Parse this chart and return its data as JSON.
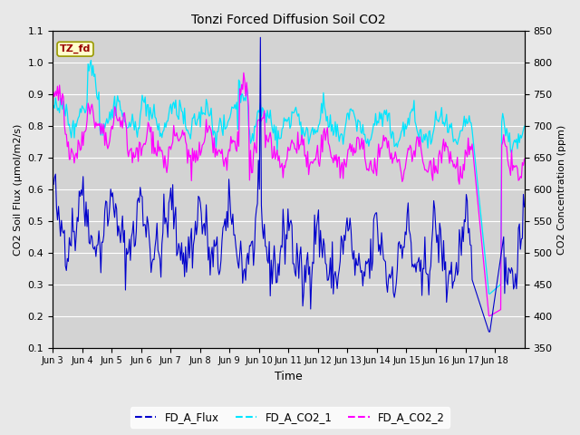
{
  "title": "Tonzi Forced Diffusion Soil CO2",
  "xlabel": "Time",
  "ylabel_left": "CO2 Soil Flux (μmol/m2/s)",
  "ylabel_right": "CO2 Concentration (ppm)",
  "ylim_left": [
    0.1,
    1.1
  ],
  "ylim_right": [
    350,
    850
  ],
  "yticks_left": [
    0.1,
    0.2,
    0.3,
    0.4,
    0.5,
    0.6,
    0.7,
    0.8,
    0.9,
    1.0,
    1.1
  ],
  "yticks_right": [
    350,
    400,
    450,
    500,
    550,
    600,
    650,
    700,
    750,
    800,
    850
  ],
  "xtick_labels": [
    "Jun 3",
    "Jun 4",
    "Jun 5",
    "Jun 6",
    "Jun 7",
    "Jun 8",
    "Jun 9",
    "Jun 10",
    "Jun 11",
    "Jun 12",
    "Jun 13",
    "Jun 14",
    "Jun 15",
    "Jun 16",
    "Jun 17",
    "Jun 18"
  ],
  "background_color": "#e8e8e8",
  "plot_bg_color": "#d3d3d3",
  "flux_color": "#0000cc",
  "co2_1_color": "#00e5ff",
  "co2_2_color": "#ff00ff",
  "tag_text": "TZ_fd",
  "tag_facecolor": "#ffffcc",
  "tag_edgecolor": "#999900",
  "tag_textcolor": "#990000",
  "legend_labels": [
    "FD_A_Flux",
    "FD_A_CO2_1",
    "FD_A_CO2_2"
  ],
  "seed": 42,
  "n_points": 480
}
